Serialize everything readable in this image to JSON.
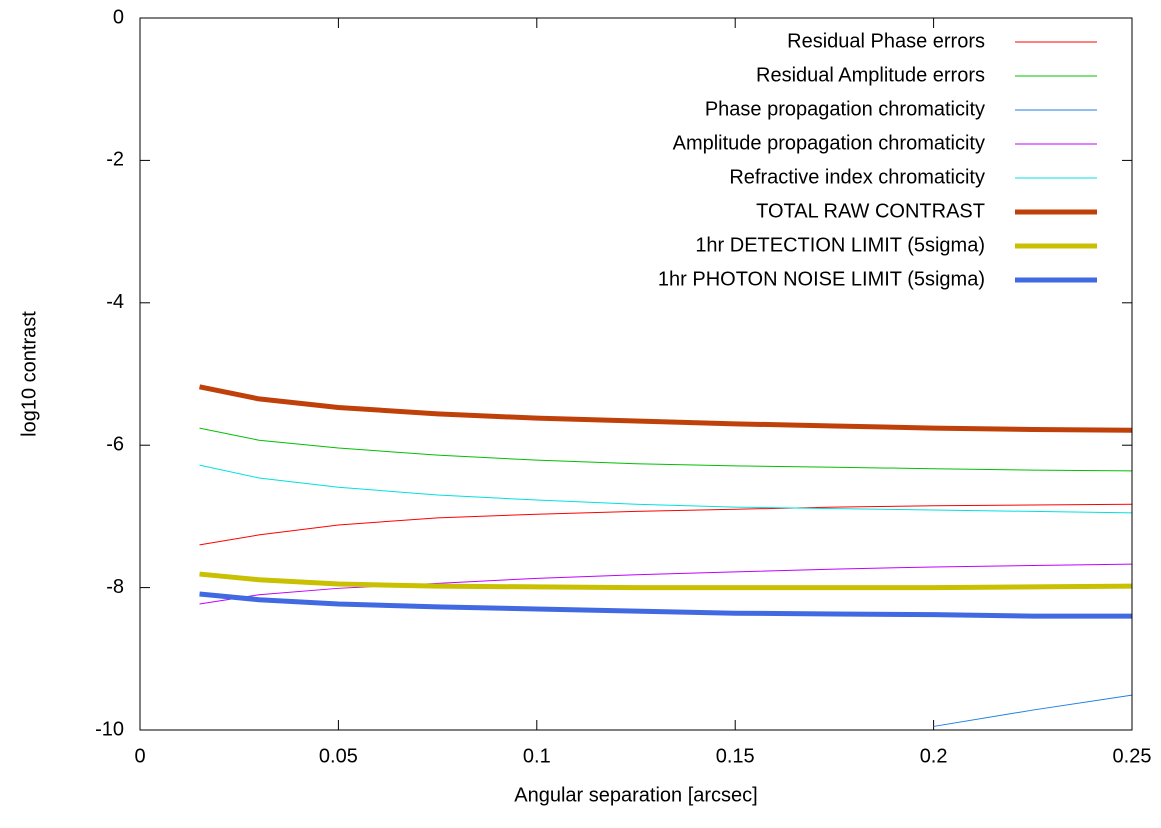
{
  "chart_data": {
    "type": "line",
    "xlabel": "Angular separation [arcsec]",
    "ylabel": "log10 contrast",
    "x": [
      0.015,
      0.03,
      0.05,
      0.075,
      0.1,
      0.125,
      0.15,
      0.175,
      0.2,
      0.225,
      0.25
    ],
    "xlim": [
      0,
      0.25
    ],
    "ylim": [
      -10,
      0
    ],
    "xticks": [
      0,
      0.05,
      0.1,
      0.15,
      0.2,
      0.25
    ],
    "yticks": [
      0,
      -2,
      -4,
      -6,
      -8,
      -10
    ],
    "legend": "upper right",
    "series": [
      {
        "name": "Residual Phase errors",
        "color": "#ff0000",
        "width": 1,
        "values": [
          -7.4,
          -7.26,
          -7.12,
          -7.02,
          -6.97,
          -6.93,
          -6.9,
          -6.87,
          -6.85,
          -6.84,
          -6.83
        ]
      },
      {
        "name": "Residual Amplitude errors",
        "color": "#00c000",
        "width": 1,
        "values": [
          -5.76,
          -5.93,
          -6.04,
          -6.14,
          -6.21,
          -6.26,
          -6.29,
          -6.31,
          -6.33,
          -6.35,
          -6.36
        ]
      },
      {
        "name": "Phase propagation chromaticity",
        "color": "#1e7fe0",
        "width": 1,
        "values": [
          null,
          null,
          null,
          null,
          null,
          null,
          null,
          null,
          -9.95,
          -9.72,
          -9.51
        ]
      },
      {
        "name": "Amplitude propagation chromaticity",
        "color": "#c000ff",
        "width": 1,
        "values": [
          -8.23,
          -8.1,
          -8.01,
          -7.94,
          -7.87,
          -7.82,
          -7.78,
          -7.74,
          -7.71,
          -7.69,
          -7.67
        ]
      },
      {
        "name": "Refractive index chromaticity",
        "color": "#00e0e0",
        "width": 1,
        "values": [
          -6.28,
          -6.46,
          -6.59,
          -6.7,
          -6.77,
          -6.83,
          -6.87,
          -6.89,
          -6.91,
          -6.93,
          -6.95
        ]
      },
      {
        "name": "TOTAL RAW CONTRAST",
        "color": "#c0400a",
        "width": 5,
        "values": [
          -5.18,
          -5.35,
          -5.47,
          -5.56,
          -5.62,
          -5.66,
          -5.7,
          -5.73,
          -5.76,
          -5.78,
          -5.79
        ]
      },
      {
        "name": "1hr DETECTION LIMIT (5sigma)",
        "color": "#c8c000",
        "width": 5,
        "values": [
          -7.81,
          -7.89,
          -7.95,
          -7.98,
          -7.99,
          -8.0,
          -8.0,
          -8.0,
          -8.0,
          -7.99,
          -7.98
        ]
      },
      {
        "name": "1hr PHOTON NOISE LIMIT (5sigma)",
        "color": "#4169e1",
        "width": 5,
        "values": [
          -8.09,
          -8.17,
          -8.23,
          -8.27,
          -8.3,
          -8.33,
          -8.36,
          -8.37,
          -8.38,
          -8.4,
          -8.4
        ]
      }
    ]
  }
}
